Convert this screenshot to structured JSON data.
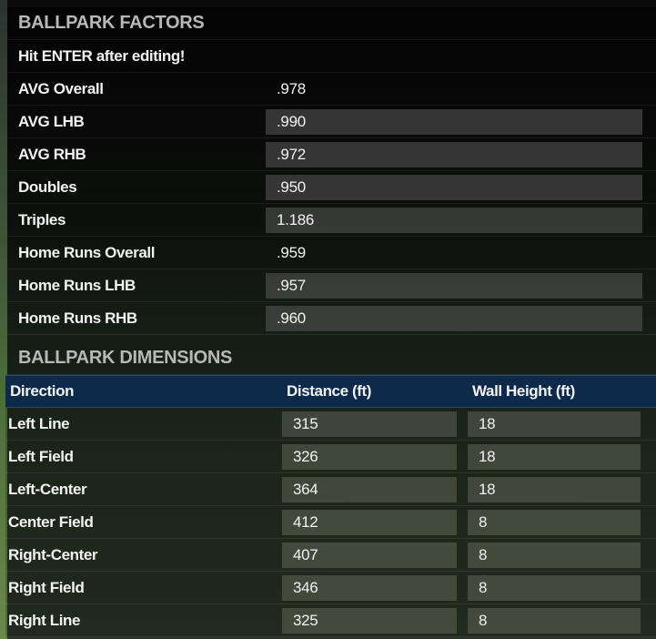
{
  "factors": {
    "title": "BALLPARK FACTORS",
    "hint": "Hit ENTER after editing!",
    "overall": {
      "label": "AVG Overall",
      "value": ".978"
    },
    "rows": [
      {
        "label": "AVG LHB",
        "value": ".990"
      },
      {
        "label": "AVG RHB",
        "value": ".972"
      },
      {
        "label": "Doubles",
        "value": ".950"
      },
      {
        "label": "Triples",
        "value": "1.186"
      }
    ],
    "hr_overall": {
      "label": "Home Runs Overall",
      "value": ".959"
    },
    "hr_rows": [
      {
        "label": "Home Runs LHB",
        "value": ".957"
      },
      {
        "label": "Home Runs RHB",
        "value": ".960"
      }
    ]
  },
  "dimensions": {
    "title": "BALLPARK DIMENSIONS",
    "columns": [
      "Direction",
      "Distance (ft)",
      "Wall Height (ft)"
    ],
    "header_color": "#0d2a4a",
    "rows": [
      {
        "direction": "Left Line",
        "distance": "315",
        "wall": "18"
      },
      {
        "direction": "Left Field",
        "distance": "326",
        "wall": "18"
      },
      {
        "direction": "Left-Center",
        "distance": "364",
        "wall": "18"
      },
      {
        "direction": "Center Field",
        "distance": "412",
        "wall": "8"
      },
      {
        "direction": "Right-Center",
        "distance": "407",
        "wall": "8"
      },
      {
        "direction": "Right Field",
        "distance": "346",
        "wall": "8"
      },
      {
        "direction": "Right Line",
        "distance": "325",
        "wall": "8"
      }
    ]
  }
}
